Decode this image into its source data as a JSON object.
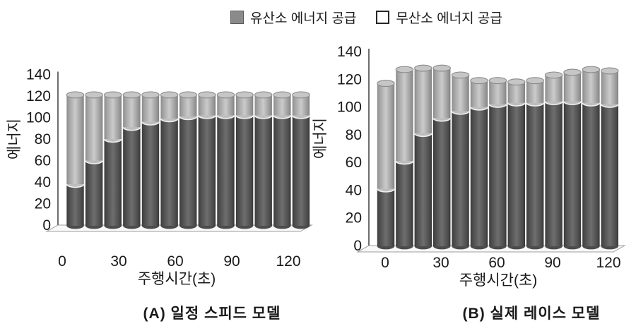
{
  "legend": {
    "items": [
      {
        "swatch": "filled-square-icon",
        "label": "유산소 에너지 공급"
      },
      {
        "swatch": "open-square-icon",
        "label": "무산소 에너지 공급"
      }
    ]
  },
  "colors": {
    "aerobic_bar": "#555555",
    "anaerobic_bar": "#c0c0c0",
    "legend_filled": "#8b8b8b",
    "text": "#1a1a1a",
    "axis": "#6e6e6e"
  },
  "chart_data": [
    {
      "type": "bar",
      "style": "3d-cylinder-stacked",
      "title": "(A) 일정 스피드 모델",
      "xlabel": "주행시간(초)",
      "ylabel": "에너지",
      "categories": [
        0,
        10,
        20,
        30,
        40,
        50,
        60,
        70,
        80,
        90,
        100,
        110,
        120
      ],
      "series": [
        {
          "name": "유산소 에너지 공급",
          "values": [
            38,
            60,
            80,
            91,
            96,
            99,
            101,
            102,
            102,
            102,
            102,
            102,
            102
          ]
        },
        {
          "name": "무산소 에너지 공급",
          "values": [
            83,
            61,
            41,
            30,
            25,
            22,
            20,
            19,
            19,
            19,
            19,
            19,
            19
          ]
        }
      ],
      "ylim": [
        0,
        140
      ],
      "yticks": [
        0,
        20,
        40,
        60,
        80,
        100,
        120,
        140
      ],
      "xticks": [
        0,
        30,
        60,
        90,
        120
      ],
      "grid": false,
      "legend_position": "top"
    },
    {
      "type": "bar",
      "style": "3d-cylinder-stacked",
      "title": "(B) 실제 레이스 모델",
      "xlabel": "주행시간(초)",
      "ylabel": "에너지",
      "categories": [
        0,
        10,
        20,
        30,
        40,
        50,
        60,
        70,
        80,
        90,
        100,
        110,
        120
      ],
      "series": [
        {
          "name": "유산소 에너지 공급",
          "values": [
            41,
            61,
            81,
            92,
            97,
            100,
            102,
            103,
            103,
            104,
            104,
            103,
            102
          ]
        },
        {
          "name": "무산소 에너지 공급",
          "values": [
            76,
            66,
            47,
            36,
            26,
            19,
            17,
            15,
            16,
            19,
            21,
            24,
            24
          ]
        }
      ],
      "ylim": [
        0,
        140
      ],
      "yticks": [
        0,
        20,
        40,
        60,
        80,
        100,
        120,
        140
      ],
      "xticks": [
        0,
        30,
        60,
        90,
        120
      ],
      "grid": false,
      "legend_position": "top"
    }
  ]
}
